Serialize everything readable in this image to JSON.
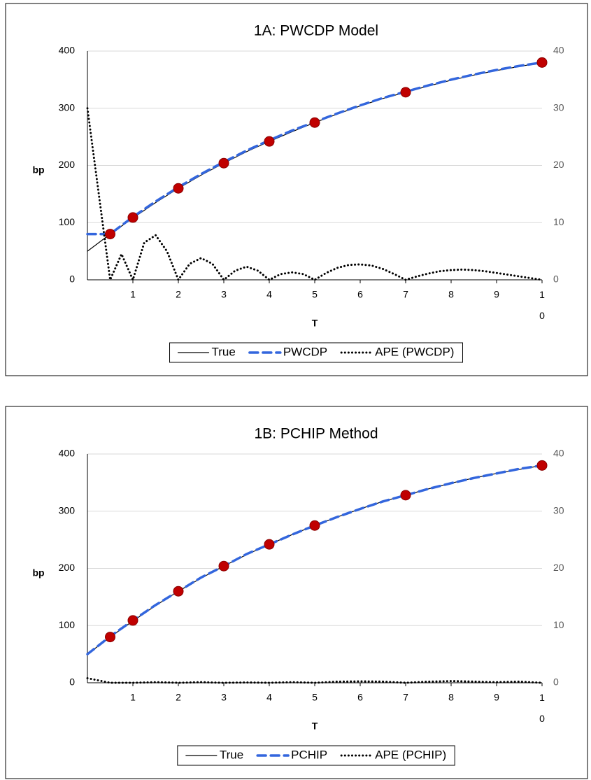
{
  "chart_data": [
    {
      "type": "line",
      "title": "1A: PWCDP Model",
      "x_label": "T",
      "y_label": "bp",
      "xlim": [
        0,
        10
      ],
      "xticks": [
        1,
        2,
        3,
        4,
        5,
        6,
        7,
        8,
        9,
        10
      ],
      "ylim": [
        0,
        400
      ],
      "yticks": [
        0,
        100,
        200,
        300,
        400
      ],
      "y2lim": [
        0,
        40
      ],
      "y2ticks": [
        0,
        10,
        20,
        30,
        40
      ],
      "grid": true,
      "legend": "bottom",
      "series": [
        {
          "name": "True",
          "color": "#000000",
          "line_style": "solid",
          "x": [
            0,
            0.5,
            1,
            1.5,
            2,
            2.5,
            3,
            3.5,
            4,
            4.5,
            5,
            5.5,
            6,
            6.5,
            7,
            7.5,
            8,
            8.5,
            9,
            9.5,
            10
          ],
          "values": [
            50,
            80,
            108,
            135,
            160,
            183,
            204,
            224,
            242,
            259,
            275,
            290,
            304,
            317,
            328,
            339,
            349,
            358,
            366,
            373,
            380
          ]
        },
        {
          "name": "PWCDP",
          "color": "#3366dd",
          "line_style": "dashed",
          "x": [
            0,
            0.5,
            1,
            1.5,
            2,
            2.5,
            3,
            3.5,
            4,
            4.5,
            5,
            5.5,
            6,
            6.5,
            7,
            7.5,
            8,
            8.5,
            9,
            9.5,
            10
          ],
          "values": [
            80,
            80,
            110,
            137,
            162,
            185,
            206,
            226,
            244,
            261,
            276,
            291,
            305,
            318,
            329,
            340,
            350,
            359,
            367,
            374,
            380
          ]
        },
        {
          "name": "APE (PWCDP)",
          "color": "#000000",
          "line_style": "dotted",
          "axis": "y2",
          "x": [
            0,
            0.25,
            0.5,
            0.75,
            1,
            1.25,
            1.5,
            1.75,
            2,
            2.25,
            2.5,
            2.75,
            3,
            3.25,
            3.5,
            3.75,
            4,
            4.25,
            4.5,
            4.75,
            5,
            5.25,
            5.5,
            5.75,
            6,
            6.25,
            6.5,
            6.75,
            7,
            7.25,
            7.5,
            7.75,
            8,
            8.25,
            8.5,
            8.75,
            9,
            9.25,
            9.5,
            9.75,
            10
          ],
          "values": [
            30,
            15,
            0,
            4.5,
            0,
            6.5,
            7.8,
            5,
            0,
            2.8,
            3.8,
            2.8,
            0,
            1.6,
            2.3,
            1.6,
            0,
            1,
            1.3,
            1,
            0,
            1.2,
            2.1,
            2.6,
            2.7,
            2.5,
            1.9,
            1,
            0,
            0.6,
            1.1,
            1.5,
            1.7,
            1.8,
            1.7,
            1.5,
            1.2,
            0.9,
            0.6,
            0.3,
            0
          ]
        },
        {
          "color": "#c00000",
          "marker": "circle",
          "x": [
            0.5,
            1,
            2,
            3,
            4,
            5,
            7,
            10
          ],
          "values": [
            80,
            109,
            160,
            204,
            242,
            275,
            328,
            380
          ]
        }
      ]
    },
    {
      "type": "line",
      "title": "1B: PCHIP Method",
      "x_label": "T",
      "y_label": "bp",
      "xlim": [
        0,
        10
      ],
      "xticks": [
        1,
        2,
        3,
        4,
        5,
        6,
        7,
        8,
        9,
        10
      ],
      "ylim": [
        0,
        400
      ],
      "yticks": [
        0,
        100,
        200,
        300,
        400
      ],
      "y2lim": [
        0,
        40
      ],
      "y2ticks": [
        0,
        10,
        20,
        30,
        40
      ],
      "grid": true,
      "legend": "bottom",
      "series": [
        {
          "name": "True",
          "color": "#000000",
          "line_style": "solid",
          "x": [
            0,
            0.5,
            1,
            1.5,
            2,
            2.5,
            3,
            3.5,
            4,
            4.5,
            5,
            5.5,
            6,
            6.5,
            7,
            7.5,
            8,
            8.5,
            9,
            9.5,
            10
          ],
          "values": [
            50,
            80,
            108,
            135,
            160,
            183,
            204,
            224,
            242,
            259,
            275,
            290,
            304,
            317,
            328,
            339,
            349,
            358,
            366,
            373,
            380
          ]
        },
        {
          "name": "PCHIP",
          "color": "#3366dd",
          "line_style": "dashed",
          "x": [
            0,
            0.5,
            1,
            1.5,
            2,
            2.5,
            3,
            3.5,
            4,
            4.5,
            5,
            5.5,
            6,
            6.5,
            7,
            7.5,
            8,
            8.5,
            9,
            9.5,
            10
          ],
          "values": [
            50,
            81,
            109,
            136,
            160,
            184,
            204,
            225,
            242,
            259,
            275,
            290,
            304,
            317,
            328,
            339,
            349,
            358,
            366,
            374,
            380
          ]
        },
        {
          "name": "APE (PCHIP)",
          "color": "#000000",
          "line_style": "dotted",
          "axis": "y2",
          "x": [
            0,
            0.5,
            1,
            1.5,
            2,
            2.5,
            3,
            3.5,
            4,
            4.5,
            5,
            5.5,
            6,
            6.5,
            7,
            7.5,
            8,
            8.5,
            9,
            9.5,
            10
          ],
          "values": [
            0.8,
            0,
            0,
            0.1,
            0,
            0.1,
            0,
            0.05,
            0,
            0.1,
            0,
            0.2,
            0.25,
            0.2,
            0,
            0.2,
            0.3,
            0.2,
            0.1,
            0.2,
            0
          ]
        },
        {
          "color": "#c00000",
          "marker": "circle",
          "x": [
            0.5,
            1,
            2,
            3,
            4,
            5,
            7,
            10
          ],
          "values": [
            80,
            109,
            160,
            204,
            242,
            275,
            328,
            380
          ]
        }
      ]
    }
  ]
}
